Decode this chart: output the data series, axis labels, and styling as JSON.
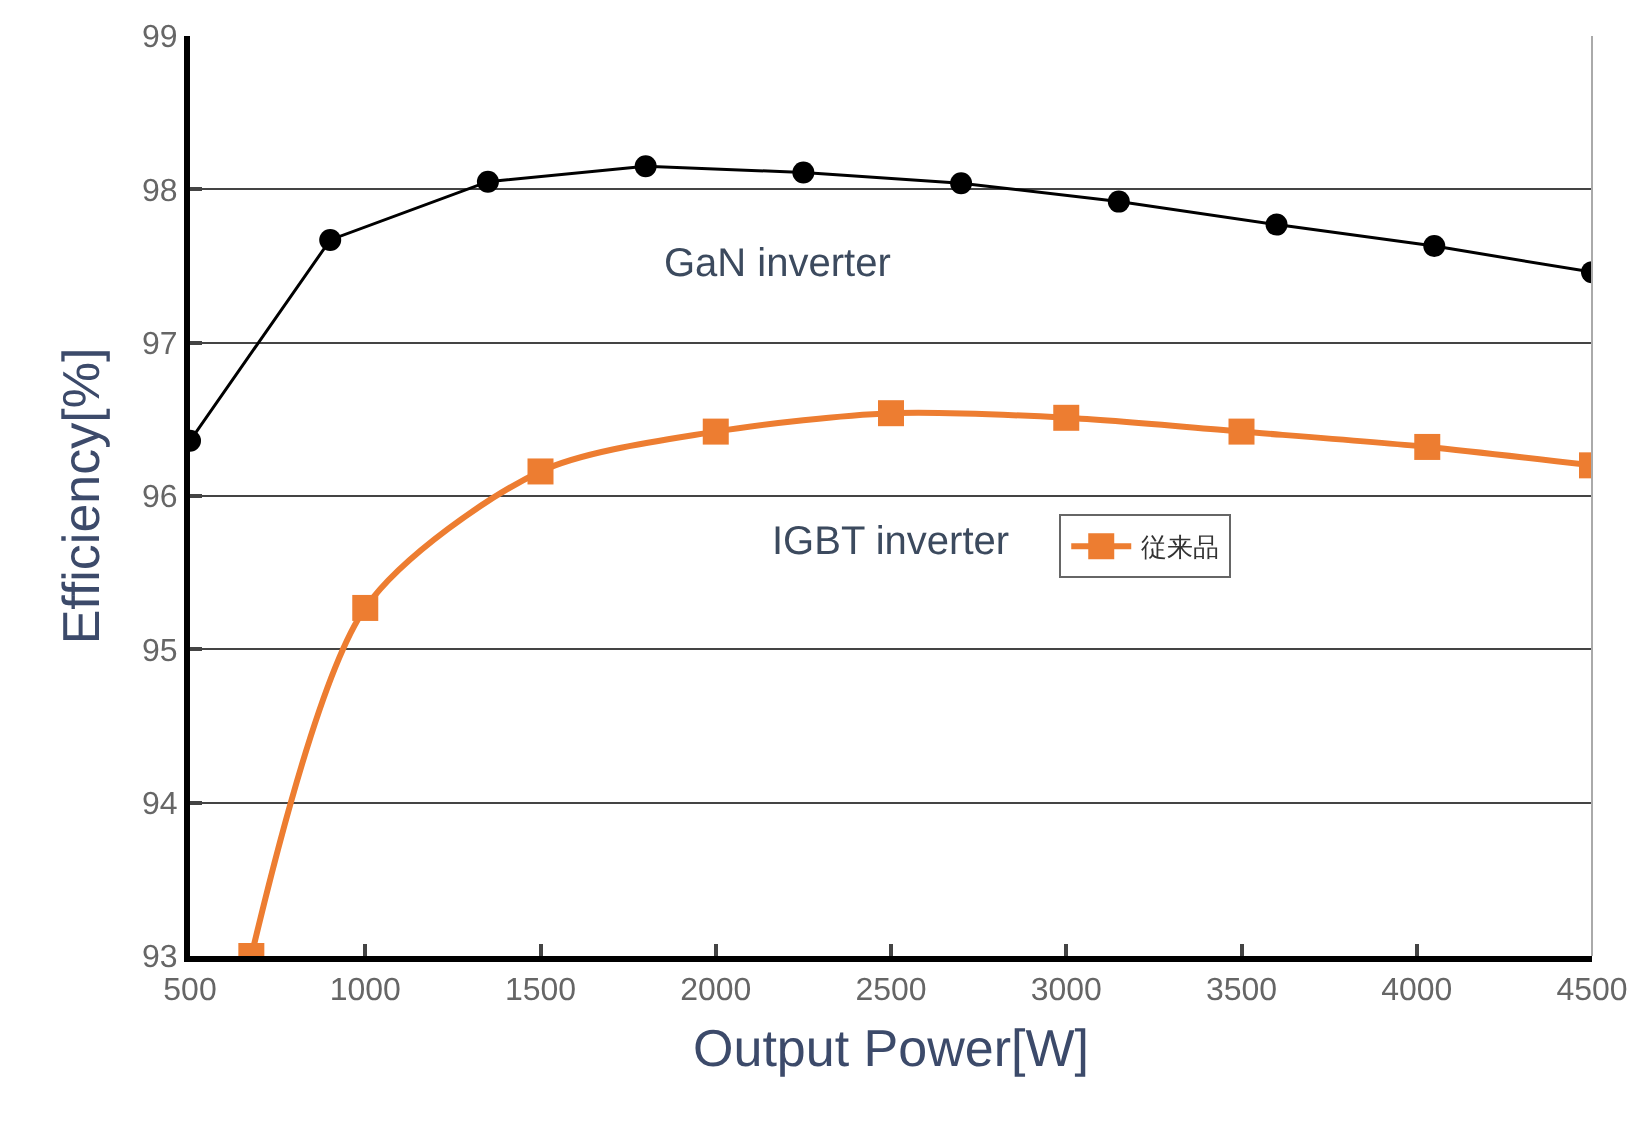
{
  "chart_data": {
    "type": "line",
    "xlabel": "Output Power[W]",
    "ylabel": "Efficiency[%]",
    "xlim": [
      500,
      4500
    ],
    "xticks": [
      500,
      1000,
      1500,
      2000,
      2500,
      3000,
      3500,
      4000,
      4500
    ],
    "ylim": [
      93,
      99
    ],
    "yticks": [
      93,
      94,
      95,
      96,
      97,
      98,
      99
    ],
    "grid": "y",
    "legend": "right",
    "series": [
      {
        "color": "#000000",
        "marker": "circle",
        "line_style": "solid",
        "x": [
          500,
          900,
          1350,
          1800,
          2250,
          2700,
          3150,
          3600,
          4050,
          4500
        ],
        "values": [
          96.36,
          97.67,
          98.05,
          98.15,
          98.11,
          98.04,
          97.92,
          97.77,
          97.63,
          97.46
        ]
      },
      {
        "name": "従来品",
        "color": "#ed7d31",
        "marker": "square",
        "line_style": "solid",
        "x": [
          675,
          1000,
          1500,
          2000,
          2500,
          3000,
          3500,
          4030,
          4500
        ],
        "values": [
          93,
          95.27,
          96.16,
          96.42,
          96.54,
          96.51,
          96.42,
          96.32,
          96.2
        ]
      }
    ],
    "annotations": [
      "GaN inverter",
      "IGBT inverter"
    ]
  }
}
